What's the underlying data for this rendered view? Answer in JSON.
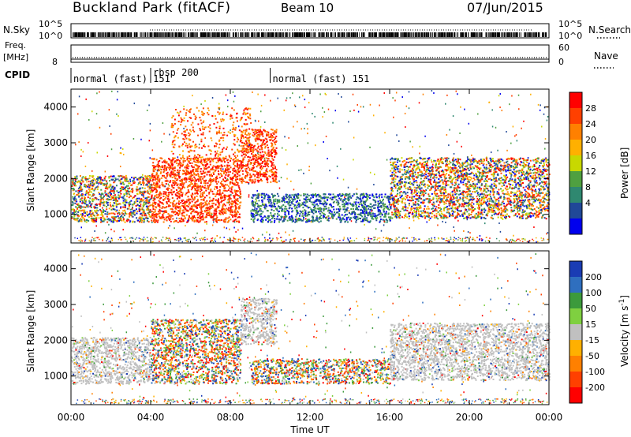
{
  "header": {
    "title": "Buckland Park (fitACF)",
    "beam": "Beam 10",
    "date": "07/Jun/2015"
  },
  "chart_data": {
    "type": "heatmap",
    "x_range_hours": [
      0,
      24
    ],
    "x_tick_labels": [
      "00:00",
      "04:00",
      "08:00",
      "12:00",
      "16:00",
      "20:00",
      "00:00"
    ],
    "xlabel": "Time UT",
    "top_strips": {
      "nsky": {
        "label": "N.Sky",
        "ticks": [
          "10^5",
          "10^0"
        ]
      },
      "nsearch": {
        "label": "N.Search"
      },
      "freq": {
        "label_line1": "Freq.",
        "label_line2": "[MHz]",
        "left_tick": "8",
        "right_ticks": [
          "60",
          "0"
        ]
      },
      "nave": {
        "label": "Nave"
      },
      "cpid": {
        "label": "CPID",
        "segments": [
          {
            "start_hour": 0,
            "end_hour": 4,
            "text": "normal (fast) 151"
          },
          {
            "start_hour": 4,
            "end_hour": 10,
            "text": "rbsp 200"
          },
          {
            "start_hour": 10,
            "end_hour": 24,
            "text": "normal (fast) 151"
          }
        ]
      }
    },
    "panels": [
      {
        "name": "power",
        "ylabel": "Slant Range [km]",
        "y_range_km": [
          200,
          4500
        ],
        "y_ticks": [
          1000,
          2000,
          3000,
          4000
        ],
        "colorbar": {
          "label": "Power [dB]",
          "ticks": [
            28,
            24,
            20,
            16,
            12,
            8,
            4
          ],
          "colors": [
            "#ff0000",
            "#ff4000",
            "#ff8000",
            "#ffb000",
            "#c8d800",
            "#4fa040",
            "#2f8870",
            "#204898",
            "#0000ee"
          ]
        },
        "echo_regions": [
          {
            "t0": 0.0,
            "t1": 4.0,
            "r0": 800,
            "r1": 2100,
            "level": "mixed"
          },
          {
            "t0": 4.0,
            "t1": 8.5,
            "r0": 800,
            "r1": 2600,
            "level": "high"
          },
          {
            "t0": 5.0,
            "t1": 9.0,
            "r0": 2500,
            "r1": 4000,
            "level": "high-sparse"
          },
          {
            "t0": 8.5,
            "t1": 10.3,
            "r0": 1900,
            "r1": 3400,
            "level": "high"
          },
          {
            "t0": 9.0,
            "t1": 16.0,
            "r0": 800,
            "r1": 1600,
            "level": "low"
          },
          {
            "t0": 16.0,
            "t1": 24.0,
            "r0": 900,
            "r1": 2600,
            "level": "mixed"
          }
        ]
      },
      {
        "name": "velocity",
        "ylabel": "Slant Range [km]",
        "y_range_km": [
          200,
          4500
        ],
        "y_ticks": [
          1000,
          2000,
          3000,
          4000
        ],
        "colorbar": {
          "label": "Velocity [m s^-1]",
          "ticks": [
            200,
            100,
            50,
            15,
            -15,
            -50,
            -100,
            -200
          ],
          "colors": [
            "#1a3cb4",
            "#2f6fbf",
            "#3c9a3c",
            "#7fd040",
            "#c0c0c0",
            "#ffb000",
            "#ff8000",
            "#ff4000",
            "#ff0000"
          ]
        },
        "echo_regions": [
          {
            "t0": 0.0,
            "t1": 4.0,
            "r0": 800,
            "r1": 2100,
            "level": "ground"
          },
          {
            "t0": 4.0,
            "t1": 8.5,
            "r0": 800,
            "r1": 2600,
            "level": "mixed"
          },
          {
            "t0": 8.5,
            "t1": 10.3,
            "r0": 1900,
            "r1": 3200,
            "level": "ground"
          },
          {
            "t0": 9.0,
            "t1": 16.0,
            "r0": 800,
            "r1": 1500,
            "level": "mixed"
          },
          {
            "t0": 16.0,
            "t1": 24.0,
            "r0": 900,
            "r1": 2500,
            "level": "ground"
          }
        ]
      }
    ]
  }
}
